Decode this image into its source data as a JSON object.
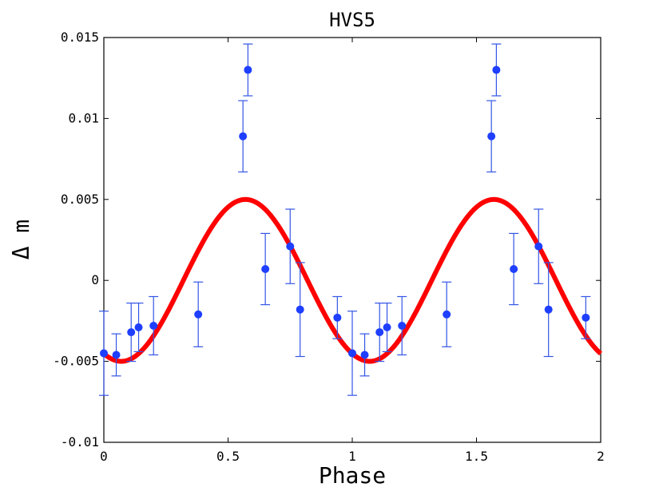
{
  "chart_data": {
    "type": "scatter",
    "title": "HVS5",
    "xlabel": "Phase",
    "ylabel": "Δ m",
    "xlim": [
      0,
      2
    ],
    "ylim": [
      -0.01,
      0.015
    ],
    "xticks": [
      0,
      0.5,
      1,
      1.5,
      2
    ],
    "xtick_labels": [
      "0",
      "0.5",
      "1",
      "1.5",
      "2"
    ],
    "yticks": [
      -0.01,
      -0.005,
      0,
      0.005,
      0.01,
      0.015
    ],
    "ytick_labels": [
      "-0.01",
      "-0.005",
      "0",
      "0.005",
      "0.01",
      "0.015"
    ],
    "grid": false,
    "series": [
      {
        "name": "observations",
        "kind": "errorbar",
        "marker_color": "#1f3fff",
        "errorbar_color": "#3355e6",
        "x": [
          0.0,
          0.05,
          0.11,
          0.14,
          0.2,
          0.38,
          0.56,
          0.58,
          0.65,
          0.75,
          0.79,
          0.94,
          1.0,
          1.05,
          1.11,
          1.14,
          1.2,
          1.38,
          1.56,
          1.58,
          1.65,
          1.75,
          1.79,
          1.94
        ],
        "y": [
          -0.0045,
          -0.0046,
          -0.0032,
          -0.0029,
          -0.0028,
          -0.0021,
          0.0089,
          0.013,
          0.0007,
          0.0021,
          -0.0018,
          -0.0023,
          -0.0045,
          -0.0046,
          -0.0032,
          -0.0029,
          -0.0028,
          -0.0021,
          0.0089,
          0.013,
          0.0007,
          0.0021,
          -0.0018,
          -0.0023
        ],
        "yerr": [
          0.0026,
          0.0013,
          0.0018,
          0.0015,
          0.0018,
          0.002,
          0.0022,
          0.0016,
          0.0022,
          0.0023,
          0.0029,
          0.0013,
          0.0026,
          0.0013,
          0.0018,
          0.0015,
          0.0018,
          0.002,
          0.0022,
          0.0016,
          0.0022,
          0.0023,
          0.0029,
          0.0013
        ]
      },
      {
        "name": "sinusoid fit",
        "kind": "line",
        "color": "#ff0000",
        "function": "amplitude * sin(2*pi*(x - phase_offset))",
        "amplitude": 0.005,
        "phase_offset": 0.32,
        "samples": 200
      }
    ]
  }
}
